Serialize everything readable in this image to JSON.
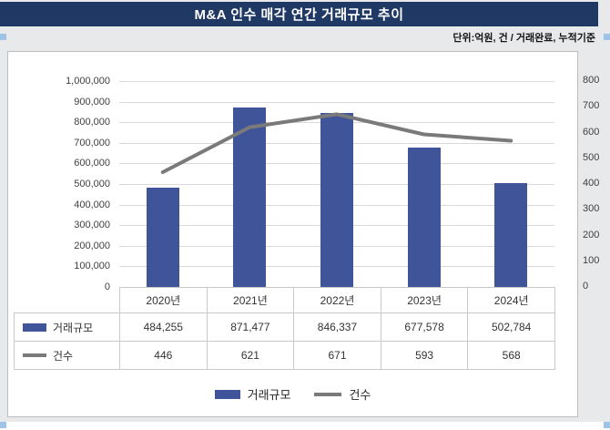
{
  "title": "M&A 인수 매각 연간 거래규모 추이",
  "unit_note": "단위:억원, 건 / 거래완료, 누적기준",
  "colors": {
    "header_bg": "#1f3864",
    "bar": "#3f5499",
    "line": "#7a7a7a",
    "grid": "#d9d9d9",
    "panel_bg": "#ffffff",
    "page_bg": "#e8e9ea"
  },
  "chart_data": {
    "type": "bar",
    "subtype": "combo-bar-line",
    "title": "M&A 인수 매각 연간 거래규모 추이",
    "categories": [
      "2020년",
      "2021년",
      "2022년",
      "2023년",
      "2024년"
    ],
    "series": [
      {
        "name": "거래규모",
        "type": "bar",
        "axis": "left",
        "values": [
          484255,
          871477,
          846337,
          677578,
          502784
        ]
      },
      {
        "name": "건수",
        "type": "line",
        "axis": "right",
        "values": [
          446,
          621,
          671,
          593,
          568
        ]
      }
    ],
    "left_axis": {
      "min": 0,
      "max": 1000000,
      "step": 100000
    },
    "right_axis": {
      "min": 0,
      "max": 800,
      "step": 100
    },
    "grid": true,
    "legend_position": "bottom"
  },
  "table": {
    "row_labels": [
      "거래규모",
      "건수"
    ],
    "values_display": [
      [
        "484,255",
        "871,477",
        "846,337",
        "677,578",
        "502,784"
      ],
      [
        "446",
        "621",
        "671",
        "593",
        "568"
      ]
    ]
  },
  "legend": {
    "items": [
      {
        "label": "거래규모",
        "swatch": "bar"
      },
      {
        "label": "건수",
        "swatch": "line"
      }
    ]
  }
}
